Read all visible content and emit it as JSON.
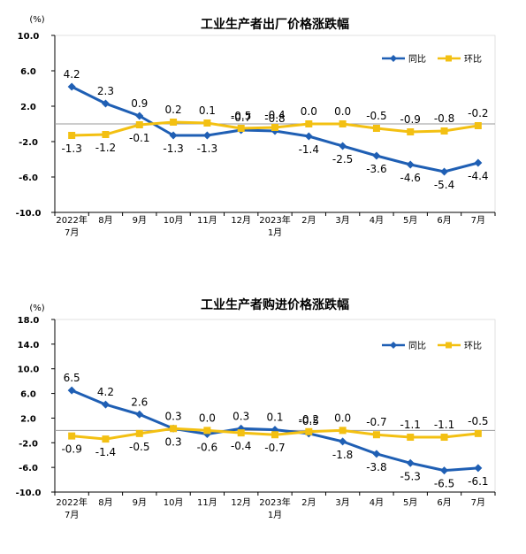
{
  "colors": {
    "yoy": "#1f5fb4",
    "mom": "#f3c012",
    "axis": "#000000",
    "zero": "#999999"
  },
  "chart_data": [
    {
      "type": "line",
      "title": "工业生产者出厂价格涨跌幅",
      "unit": "(%)",
      "ylim": [
        -10,
        10
      ],
      "yticks": [
        "10.0",
        "6.0",
        "2.0",
        "-2.0",
        "-6.0",
        "-10.0"
      ],
      "ytick_values": [
        10,
        6,
        2,
        -2,
        -6,
        -10
      ],
      "categories": [
        [
          "2022年",
          "7月"
        ],
        [
          "8月"
        ],
        [
          "9月"
        ],
        [
          "10月"
        ],
        [
          "11月"
        ],
        [
          "12月"
        ],
        [
          "2023年",
          "1月"
        ],
        [
          "2月"
        ],
        [
          "3月"
        ],
        [
          "4月"
        ],
        [
          "5月"
        ],
        [
          "6月"
        ],
        [
          "7月"
        ]
      ],
      "legend_position": "top-right",
      "series": [
        {
          "name": "同比",
          "values": [
            4.2,
            2.3,
            0.9,
            -1.3,
            -1.3,
            -0.7,
            -0.8,
            -1.4,
            -2.5,
            -3.6,
            -4.6,
            -5.4,
            -4.4
          ]
        },
        {
          "name": "环比",
          "values": [
            -1.3,
            -1.2,
            -0.1,
            0.2,
            0.1,
            -0.5,
            -0.4,
            0.0,
            0.0,
            -0.5,
            -0.9,
            -0.8,
            -0.2
          ]
        }
      ],
      "labels": {
        "yoy": [
          "4.2",
          "2.3",
          "0.9",
          "-1.3",
          "-1.3",
          "-0.7",
          "-0.8",
          "-1.4",
          "-2.5",
          "-3.6",
          "-4.6",
          "-5.4",
          "-4.4"
        ],
        "mom": [
          "-1.3",
          "-1.2",
          "-0.1",
          "0.2",
          "0.1",
          "-0.5",
          "-0.4",
          "0.0",
          "0.0",
          "-0.5",
          "-0.9",
          "-0.8",
          "-0.2"
        ]
      }
    },
    {
      "type": "line",
      "title": "工业生产者购进价格涨跌幅",
      "unit": "(%)",
      "ylim": [
        -10,
        18
      ],
      "yticks": [
        "18.0",
        "14.0",
        "10.0",
        "6.0",
        "2.0",
        "-2.0",
        "-6.0",
        "-10.0"
      ],
      "ytick_values": [
        18,
        14,
        10,
        6,
        2,
        -2,
        -6,
        -10
      ],
      "categories": [
        [
          "2022年",
          "7月"
        ],
        [
          "8月"
        ],
        [
          "9月"
        ],
        [
          "10月"
        ],
        [
          "11月"
        ],
        [
          "12月"
        ],
        [
          "2023年",
          "1月"
        ],
        [
          "2月"
        ],
        [
          "3月"
        ],
        [
          "4月"
        ],
        [
          "5月"
        ],
        [
          "6月"
        ],
        [
          "7月"
        ]
      ],
      "legend_position": "top-right",
      "series": [
        {
          "name": "同比",
          "values": [
            6.5,
            4.2,
            2.6,
            0.3,
            -0.6,
            0.3,
            0.1,
            -0.5,
            -1.8,
            -3.8,
            -5.3,
            -6.5,
            -6.1
          ]
        },
        {
          "name": "环比",
          "values": [
            -0.9,
            -1.4,
            -0.5,
            0.3,
            0.0,
            -0.4,
            -0.7,
            -0.2,
            0.0,
            -0.7,
            -1.1,
            -1.1,
            -0.5
          ]
        }
      ],
      "labels": {
        "yoy": [
          "6.5",
          "4.2",
          "2.6",
          "0.3",
          "-0.6",
          "0.3",
          "0.1",
          "-0.5",
          "-1.8",
          "-3.8",
          "-5.3",
          "-6.5",
          "-6.1"
        ],
        "mom": [
          "-0.9",
          "-1.4",
          "-0.5",
          "0.3",
          "0.0",
          "-0.4",
          "-0.7",
          "-0.2",
          "0.0",
          "-0.7",
          "-1.1",
          "-1.1",
          "-0.5"
        ]
      }
    }
  ]
}
